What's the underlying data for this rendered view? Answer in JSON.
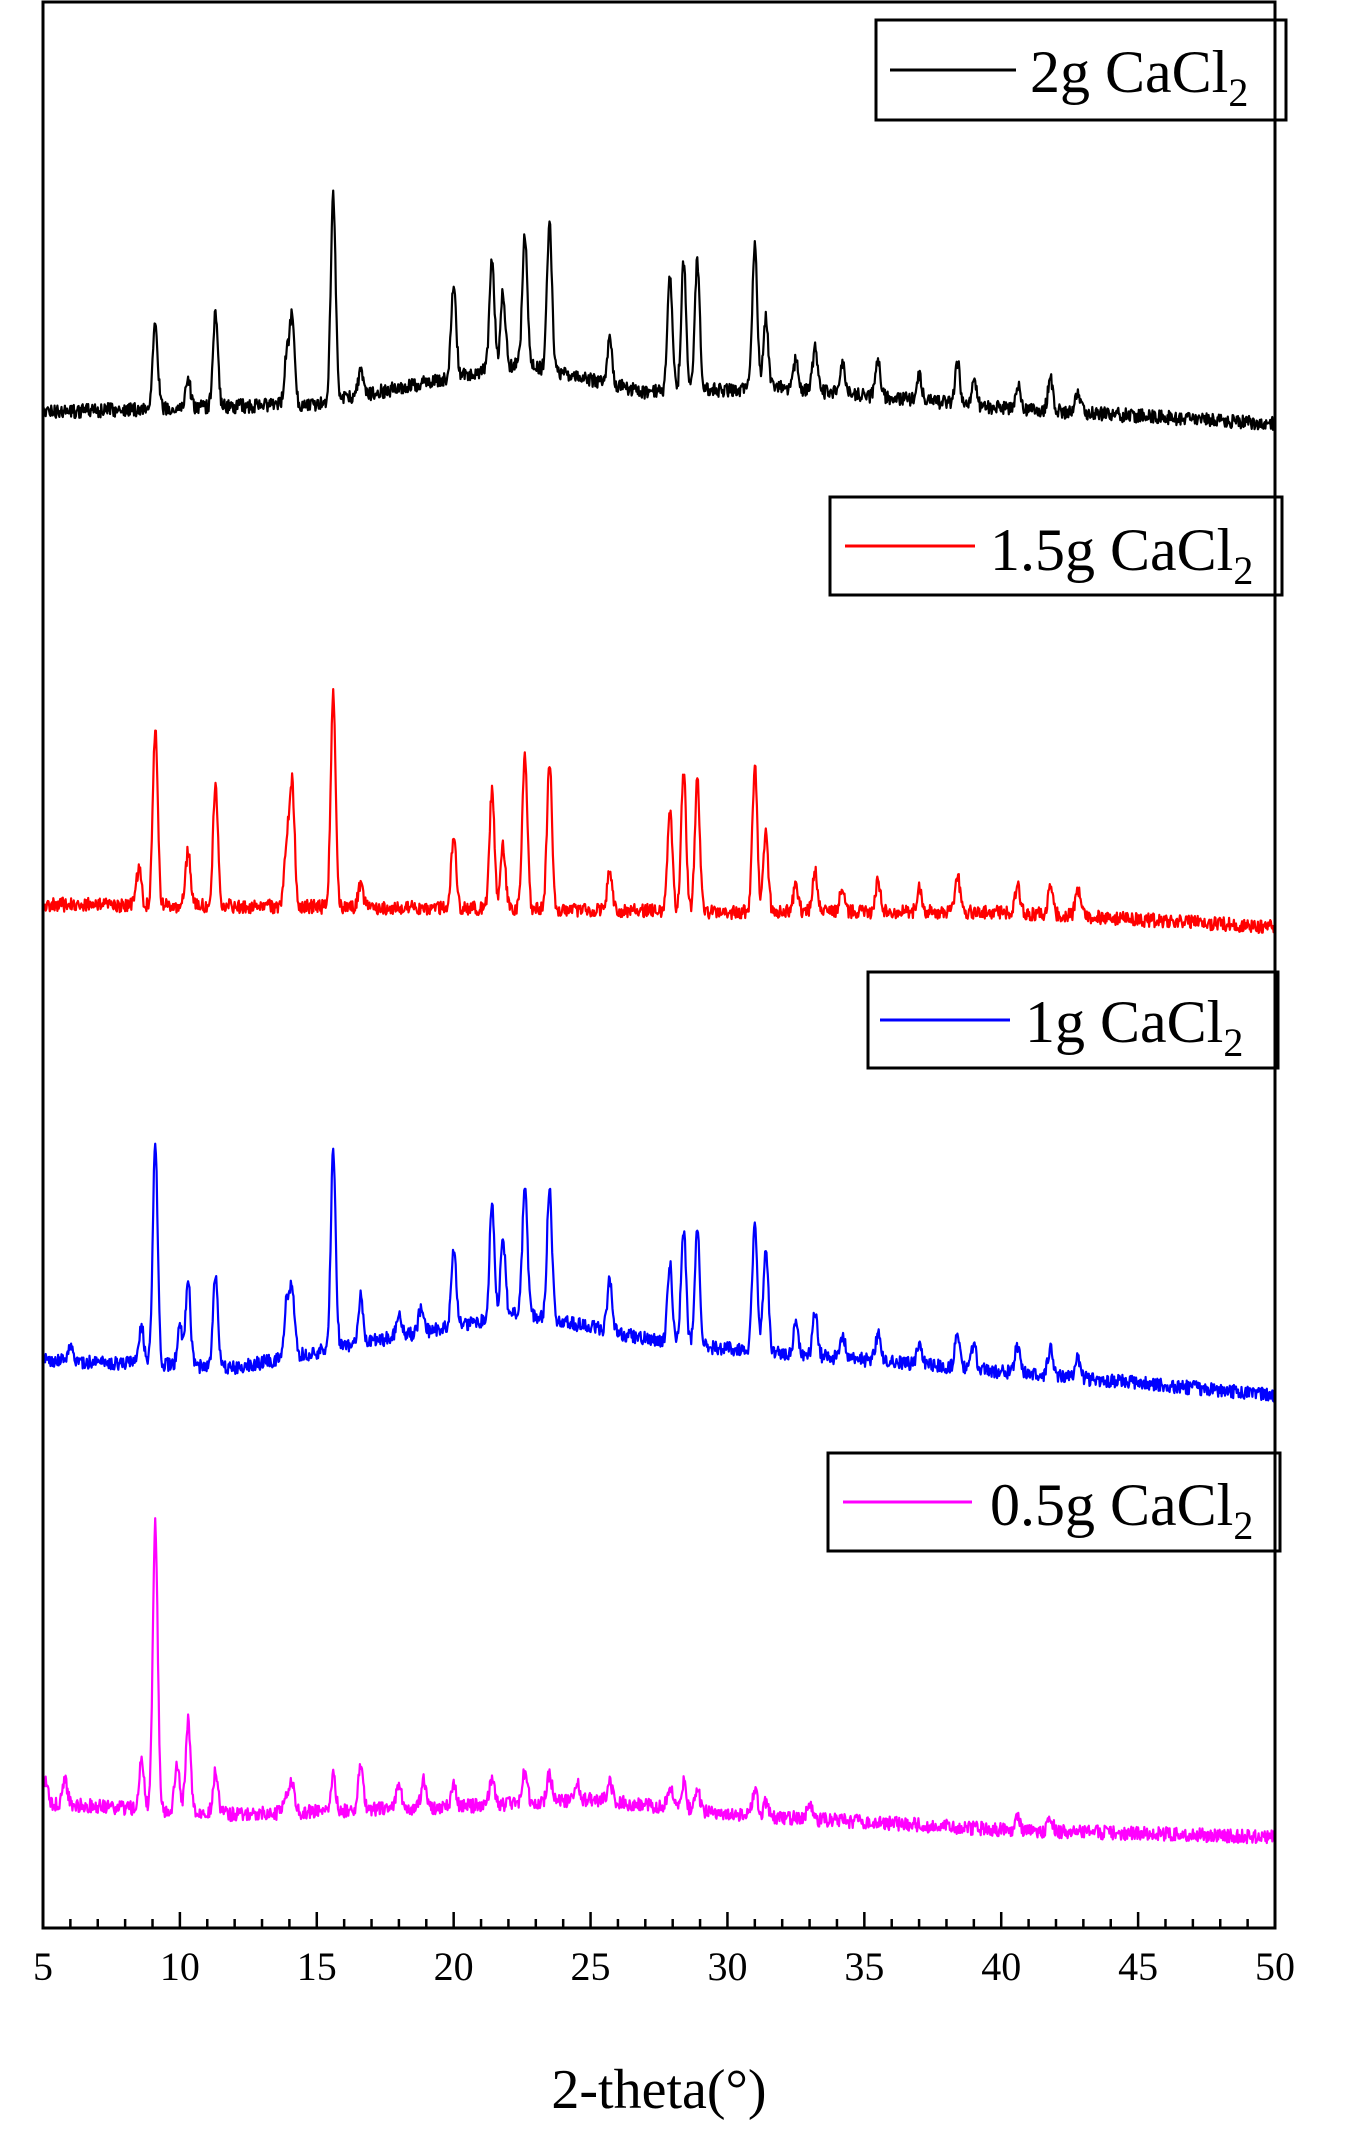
{
  "chart_data": {
    "type": "line",
    "xlabel": "2-theta(°)",
    "ylabel": "",
    "xlim": [
      5,
      50
    ],
    "xticks": [
      5,
      10,
      15,
      20,
      25,
      30,
      35,
      40,
      45,
      50
    ],
    "yticks": false,
    "stacked_offset": true,
    "grid": false,
    "legend_placement": "top-right of each trace",
    "series": [
      {
        "name": "2g CaCl2",
        "legend_text": "2g CaCl",
        "legend_subscript": "2",
        "color": "#000000",
        "baseline_points": [
          [
            5,
            0.88
          ],
          [
            15,
            0.86
          ],
          [
            22.5,
            0.76
          ],
          [
            27,
            0.83
          ],
          [
            32,
            0.82
          ],
          [
            40,
            0.87
          ],
          [
            50,
            0.91
          ]
        ],
        "peaks": [
          [
            9.1,
            95
          ],
          [
            10.3,
            30
          ],
          [
            11.3,
            100
          ],
          [
            13.9,
            50
          ],
          [
            14.1,
            90
          ],
          [
            15.6,
            215
          ],
          [
            16.6,
            25
          ],
          [
            20.0,
            95
          ],
          [
            21.4,
            120
          ],
          [
            21.8,
            80
          ],
          [
            22.6,
            135
          ],
          [
            23.5,
            155
          ],
          [
            25.7,
            45
          ],
          [
            27.9,
            120
          ],
          [
            28.4,
            135
          ],
          [
            28.9,
            135
          ],
          [
            31.0,
            150
          ],
          [
            31.4,
            75
          ],
          [
            32.5,
            30
          ],
          [
            33.2,
            45
          ],
          [
            34.2,
            30
          ],
          [
            35.5,
            40
          ],
          [
            37.0,
            25
          ],
          [
            38.4,
            45
          ],
          [
            39.0,
            25
          ],
          [
            40.6,
            25
          ],
          [
            41.8,
            35
          ],
          [
            42.8,
            20
          ]
        ],
        "amplitude_note": "peak heights in arbitrary intensity units; curve is offset vertically"
      },
      {
        "name": "1.5g CaCl2",
        "legend_text": "1.5g CaCl",
        "legend_subscript": "2",
        "color": "#ff0000",
        "baseline_points": [
          [
            5,
            0.88
          ],
          [
            20,
            0.89
          ],
          [
            30,
            0.9
          ],
          [
            40,
            0.9
          ],
          [
            50,
            0.94
          ]
        ],
        "peaks": [
          [
            8.5,
            40
          ],
          [
            9.1,
            195
          ],
          [
            10.3,
            60
          ],
          [
            11.3,
            130
          ],
          [
            13.9,
            70
          ],
          [
            14.1,
            135
          ],
          [
            15.6,
            235
          ],
          [
            16.6,
            25
          ],
          [
            20.0,
            80
          ],
          [
            21.4,
            130
          ],
          [
            21.8,
            70
          ],
          [
            22.6,
            175
          ],
          [
            23.5,
            165
          ],
          [
            25.7,
            45
          ],
          [
            27.9,
            110
          ],
          [
            28.4,
            155
          ],
          [
            28.9,
            145
          ],
          [
            31.0,
            160
          ],
          [
            31.4,
            85
          ],
          [
            32.5,
            30
          ],
          [
            33.2,
            45
          ],
          [
            34.2,
            30
          ],
          [
            35.5,
            35
          ],
          [
            37.0,
            25
          ],
          [
            38.4,
            40
          ],
          [
            40.6,
            30
          ],
          [
            41.8,
            35
          ],
          [
            42.8,
            30
          ]
        ],
        "amplitude_note": "peak heights in arbitrary intensity units; curve is offset vertically"
      },
      {
        "name": "1g CaCl2",
        "legend_text": "1g CaCl",
        "legend_subscript": "2",
        "color": "#0000ff",
        "baseline_points": [
          [
            5,
            0.82
          ],
          [
            12,
            0.84
          ],
          [
            22.5,
            0.7
          ],
          [
            28,
            0.78
          ],
          [
            35,
            0.82
          ],
          [
            50,
            0.91
          ]
        ],
        "peaks": [
          [
            6.0,
            15
          ],
          [
            8.6,
            40
          ],
          [
            9.1,
            235
          ],
          [
            10.0,
            40
          ],
          [
            10.3,
            90
          ],
          [
            11.3,
            100
          ],
          [
            13.9,
            60
          ],
          [
            14.1,
            75
          ],
          [
            15.6,
            210
          ],
          [
            16.6,
            50
          ],
          [
            18.0,
            25
          ],
          [
            18.8,
            25
          ],
          [
            20.0,
            85
          ],
          [
            21.4,
            120
          ],
          [
            21.8,
            85
          ],
          [
            22.6,
            135
          ],
          [
            23.5,
            140
          ],
          [
            25.7,
            55
          ],
          [
            27.9,
            85
          ],
          [
            28.4,
            125
          ],
          [
            28.9,
            125
          ],
          [
            31.0,
            140
          ],
          [
            31.4,
            115
          ],
          [
            32.5,
            30
          ],
          [
            33.2,
            45
          ],
          [
            34.2,
            25
          ],
          [
            35.5,
            30
          ],
          [
            37.0,
            20
          ],
          [
            38.4,
            40
          ],
          [
            39.0,
            25
          ],
          [
            40.6,
            30
          ],
          [
            41.8,
            30
          ],
          [
            42.8,
            20
          ]
        ],
        "amplitude_note": "peak heights in arbitrary intensity units; curve is offset vertically"
      },
      {
        "name": "0.5g CaCl2",
        "legend_text": "0.5g CaCl",
        "legend_subscript": "2",
        "color": "#ff00ff",
        "baseline_points": [
          [
            5,
            0.85
          ],
          [
            12,
            0.88
          ],
          [
            20,
            0.86
          ],
          [
            25,
            0.84
          ],
          [
            30,
            0.88
          ],
          [
            40,
            0.92
          ],
          [
            50,
            0.94
          ]
        ],
        "peaks": [
          [
            5.1,
            25
          ],
          [
            5.8,
            25
          ],
          [
            8.6,
            55
          ],
          [
            9.1,
            315
          ],
          [
            9.9,
            50
          ],
          [
            10.3,
            100
          ],
          [
            11.3,
            45
          ],
          [
            13.9,
            20
          ],
          [
            14.1,
            30
          ],
          [
            15.6,
            40
          ],
          [
            16.6,
            50
          ],
          [
            18.0,
            30
          ],
          [
            18.9,
            30
          ],
          [
            20.0,
            25
          ],
          [
            21.4,
            30
          ],
          [
            22.6,
            35
          ],
          [
            23.5,
            30
          ],
          [
            24.5,
            20
          ],
          [
            25.7,
            20
          ],
          [
            27.9,
            25
          ],
          [
            28.4,
            30
          ],
          [
            28.9,
            25
          ],
          [
            31.0,
            30
          ],
          [
            31.4,
            15
          ],
          [
            33.0,
            15
          ],
          [
            40.6,
            12
          ],
          [
            41.8,
            12
          ]
        ],
        "amplitude_note": "peak heights in arbitrary intensity units; curve is offset vertically"
      }
    ]
  }
}
